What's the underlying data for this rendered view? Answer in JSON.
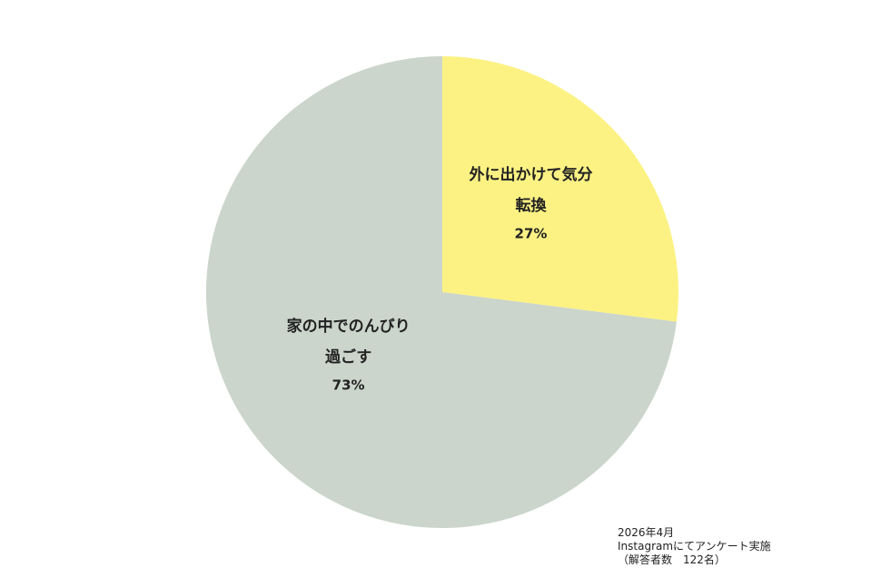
{
  "chart_data": {
    "type": "pie",
    "categories": [
      [
        "外に出かけて気分",
        "転換"
      ],
      [
        "家の中でのんびり",
        "過ごす"
      ]
    ],
    "values": [
      27,
      73
    ],
    "value_labels": [
      "27%",
      "73%"
    ],
    "colors": [
      "#fcf283",
      "#cbd5cb"
    ],
    "note": [
      "2026年4月",
      "Instagramにてアンケート実施",
      "（解答者数　122名）"
    ]
  }
}
